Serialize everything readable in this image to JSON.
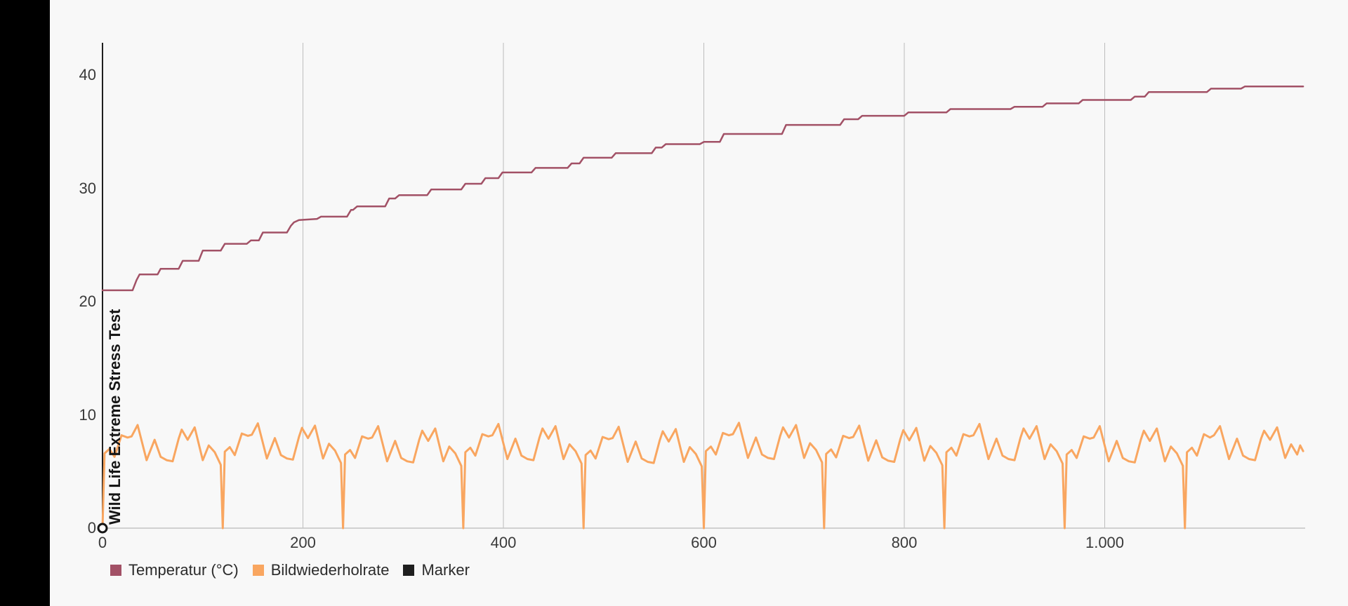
{
  "chart_data": {
    "type": "line",
    "title": "",
    "marker_annotation": "Wild Life Extreme Stress Test",
    "xlabel": "",
    "ylabel": "",
    "xlim": [
      0,
      1200
    ],
    "ylim": [
      0,
      43
    ],
    "grid": "vertical-only",
    "legend_position": "bottom-left",
    "xticks": {
      "values": [
        0,
        200,
        400,
        600,
        800,
        1000
      ],
      "labels": [
        "0",
        "200",
        "400",
        "600",
        "800",
        "1.000"
      ]
    },
    "yticks": {
      "values": [
        0,
        10,
        20,
        30,
        40
      ],
      "labels": [
        "0",
        "10",
        "20",
        "30",
        "40"
      ]
    },
    "series": [
      {
        "name": "Temperatur (°C)",
        "color": "#a25166",
        "type": "step-line",
        "points": [
          [
            0,
            21
          ],
          [
            30,
            21
          ],
          [
            34,
            21.9
          ],
          [
            37,
            22.4
          ],
          [
            55,
            22.4
          ],
          [
            58,
            22.9
          ],
          [
            76,
            22.9
          ],
          [
            80,
            23.6
          ],
          [
            96,
            23.6
          ],
          [
            100,
            24.5
          ],
          [
            118,
            24.5
          ],
          [
            122,
            25.1
          ],
          [
            144,
            25.1
          ],
          [
            148,
            25.4
          ],
          [
            156,
            25.4
          ],
          [
            160,
            26.1
          ],
          [
            184,
            26.1
          ],
          [
            188,
            26.7
          ],
          [
            191,
            27.0
          ],
          [
            196,
            27.2
          ],
          [
            214,
            27.3
          ],
          [
            218,
            27.5
          ],
          [
            244,
            27.5
          ],
          [
            248,
            28.1
          ],
          [
            250,
            28.1
          ],
          [
            254,
            28.4
          ],
          [
            282,
            28.4
          ],
          [
            286,
            29.1
          ],
          [
            292,
            29.1
          ],
          [
            296,
            29.4
          ],
          [
            324,
            29.4
          ],
          [
            328,
            29.9
          ],
          [
            358,
            29.9
          ],
          [
            362,
            30.4
          ],
          [
            378,
            30.4
          ],
          [
            382,
            30.9
          ],
          [
            395,
            30.9
          ],
          [
            399,
            31.4
          ],
          [
            428,
            31.4
          ],
          [
            432,
            31.8
          ],
          [
            464,
            31.8
          ],
          [
            468,
            32.2
          ],
          [
            476,
            32.2
          ],
          [
            480,
            32.7
          ],
          [
            508,
            32.7
          ],
          [
            512,
            33.1
          ],
          [
            548,
            33.1
          ],
          [
            552,
            33.6
          ],
          [
            558,
            33.6
          ],
          [
            562,
            33.9
          ],
          [
            596,
            33.9
          ],
          [
            600,
            34.1
          ],
          [
            616,
            34.1
          ],
          [
            620,
            34.8
          ],
          [
            678,
            34.8
          ],
          [
            682,
            35.6
          ],
          [
            736,
            35.6
          ],
          [
            740,
            36.1
          ],
          [
            754,
            36.1
          ],
          [
            758,
            36.4
          ],
          [
            800,
            36.4
          ],
          [
            804,
            36.7
          ],
          [
            842,
            36.7
          ],
          [
            846,
            37.0
          ],
          [
            906,
            37.0
          ],
          [
            910,
            37.2
          ],
          [
            938,
            37.2
          ],
          [
            942,
            37.5
          ],
          [
            974,
            37.5
          ],
          [
            978,
            37.8
          ],
          [
            1026,
            37.8
          ],
          [
            1030,
            38.1
          ],
          [
            1040,
            38.1
          ],
          [
            1044,
            38.5
          ],
          [
            1102,
            38.5
          ],
          [
            1106,
            38.8
          ],
          [
            1136,
            38.8
          ],
          [
            1140,
            39.0
          ],
          [
            1198,
            39.0
          ]
        ]
      },
      {
        "name": "Bildwiederholrate",
        "color": "#f9a660",
        "type": "line",
        "period": 120,
        "loops": 9,
        "loop_pattern_offsets": [
          0,
          2,
          7,
          12,
          19,
          25,
          29,
          35,
          44,
          52,
          58,
          64,
          70,
          76,
          79,
          85,
          92,
          100,
          106,
          112,
          118
        ],
        "loop_pattern_values": [
          0,
          6.6,
          7.0,
          6.3,
          8.2,
          8.0,
          8.1,
          9.1,
          6.0,
          7.8,
          6.3,
          6.0,
          5.9,
          7.9,
          8.7,
          7.8,
          8.9,
          6.0,
          7.3,
          6.7,
          5.6
        ],
        "loop_jitter": [
          0,
          0.15,
          -0.1,
          0.1,
          -0.15,
          0.2,
          -0.05,
          0.1,
          -0.1
        ],
        "final_segment": [
          [
            1080,
            0
          ],
          [
            1082,
            6.7
          ],
          [
            1087,
            7.1
          ],
          [
            1092,
            6.4
          ],
          [
            1099,
            8.3
          ],
          [
            1105,
            8.0
          ],
          [
            1109,
            8.2
          ],
          [
            1115,
            9.0
          ],
          [
            1124,
            6.1
          ],
          [
            1132,
            7.9
          ],
          [
            1138,
            6.4
          ],
          [
            1144,
            6.1
          ],
          [
            1150,
            6.0
          ],
          [
            1156,
            7.9
          ],
          [
            1159,
            8.6
          ],
          [
            1165,
            7.8
          ],
          [
            1172,
            8.9
          ],
          [
            1180,
            6.2
          ],
          [
            1186,
            7.4
          ],
          [
            1192,
            6.5
          ],
          [
            1195,
            7.3
          ],
          [
            1198,
            6.8
          ]
        ]
      },
      {
        "name": "Marker",
        "color": "#1f1f1f",
        "type": "vertical-marker",
        "marker_x": 0,
        "marker_point": [
          0,
          0
        ],
        "marker_label": "Wild Life Extreme Stress Test"
      }
    ]
  },
  "legend": {
    "items": [
      {
        "label": "Temperatur (°C)",
        "color": "#a25166"
      },
      {
        "label": "Bildwiederholrate",
        "color": "#f9a660"
      },
      {
        "label": "Marker",
        "color": "#1f1f1f"
      }
    ]
  },
  "colors": {
    "background": "#f8f8f8",
    "sidebar": "#000000",
    "gridline": "#bdbdbd",
    "axis": "#c4c4c4",
    "tick_text": "#3a3a3a"
  }
}
